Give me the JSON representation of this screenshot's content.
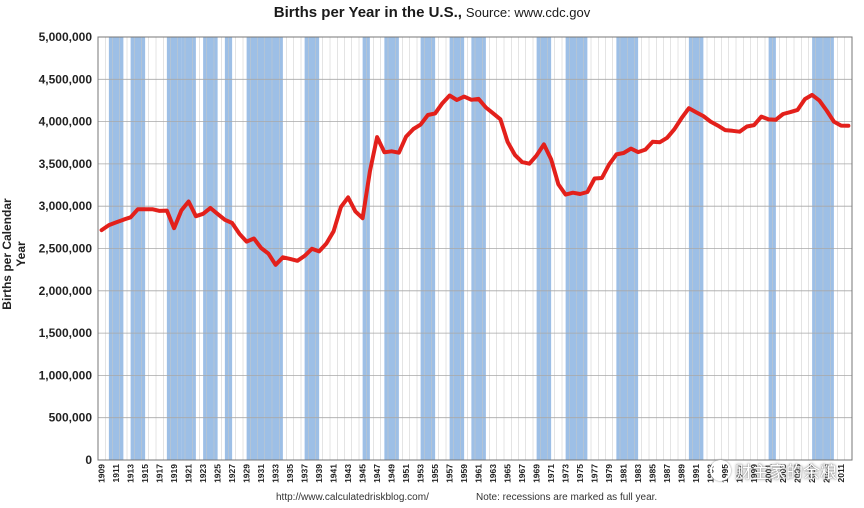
{
  "header": {
    "title": "Births per Year in the U.S.,",
    "source": "Source: www.cdc.gov"
  },
  "footer": {
    "url": "http://www.calculatedriskblog.com/",
    "note": "Note:  recessions are marked as full year."
  },
  "watermark": {
    "text": "财主家的余粮"
  },
  "colors": {
    "line": "#e3201b",
    "recession": "#9dbfe6",
    "grid": "#c8c8c8"
  },
  "chart_data": {
    "type": "line",
    "ylabel": "Births per Calendar Year",
    "xlabel": "",
    "ylim": [
      0,
      5000000
    ],
    "yticks": [
      "0",
      "500,000",
      "1,000,000",
      "1,500,000",
      "2,000,000",
      "2,500,000",
      "3,000,000",
      "3,500,000",
      "4,000,000",
      "4,500,000",
      "5,000,000"
    ],
    "xlim": [
      1909,
      2013
    ],
    "xticks": [
      1909,
      1911,
      1913,
      1915,
      1917,
      1919,
      1921,
      1923,
      1925,
      1927,
      1929,
      1931,
      1933,
      1935,
      1937,
      1939,
      1941,
      1943,
      1945,
      1947,
      1949,
      1951,
      1953,
      1955,
      1957,
      1959,
      1961,
      1963,
      1965,
      1967,
      1969,
      1971,
      1973,
      1975,
      1977,
      1979,
      1981,
      1983,
      1985,
      1987,
      1989,
      1991,
      1993,
      1995,
      1997,
      1999,
      2001,
      2003,
      2005,
      2007,
      2009,
      2011
    ],
    "recessions": [
      [
        1910,
        1911
      ],
      [
        1913,
        1914
      ],
      [
        1918,
        1919
      ],
      [
        1920,
        1921
      ],
      [
        1923,
        1924
      ],
      [
        1926,
        1926
      ],
      [
        1929,
        1933
      ],
      [
        1937,
        1938
      ],
      [
        1945,
        1945
      ],
      [
        1948,
        1949
      ],
      [
        1953,
        1954
      ],
      [
        1957,
        1958
      ],
      [
        1960,
        1961
      ],
      [
        1969,
        1970
      ],
      [
        1973,
        1975
      ],
      [
        1980,
        1982
      ],
      [
        1990,
        1991
      ],
      [
        2001,
        2001
      ],
      [
        2007,
        2009
      ]
    ],
    "series": [
      {
        "x": [
          1909,
          1910,
          1911,
          1912,
          1913,
          1914,
          1915,
          1916,
          1917,
          1918,
          1919,
          1920,
          1921,
          1922,
          1923,
          1924,
          1925,
          1926,
          1927,
          1928,
          1929,
          1930,
          1931,
          1932,
          1933,
          1934,
          1935,
          1936,
          1937,
          1938,
          1939,
          1940,
          1941,
          1942,
          1943,
          1944,
          1945,
          1946,
          1947,
          1948,
          1949,
          1950,
          1951,
          1952,
          1953,
          1954,
          1955,
          1956,
          1957,
          1958,
          1959,
          1960,
          1961,
          1962,
          1963,
          1964,
          1965,
          1966,
          1967,
          1968,
          1969,
          1970,
          1971,
          1972,
          1973,
          1974,
          1975,
          1976,
          1977,
          1978,
          1979,
          1980,
          1981,
          1982,
          1983,
          1984,
          1985,
          1986,
          1987,
          1988,
          1989,
          1990,
          1991,
          1992,
          1993,
          1994,
          1995,
          1996,
          1997,
          1998,
          1999,
          2000,
          2001,
          2002,
          2003,
          2004,
          2005,
          2006,
          2007,
          2008,
          2009,
          2010,
          2011,
          2012
        ],
        "values": [
          2718000,
          2777000,
          2809000,
          2840000,
          2869000,
          2965000,
          2965000,
          2964000,
          2944000,
          2948000,
          2740000,
          2950000,
          3055000,
          2882000,
          2910000,
          2979000,
          2909000,
          2839000,
          2802000,
          2674000,
          2582000,
          2618000,
          2506000,
          2440000,
          2307000,
          2396000,
          2377000,
          2355000,
          2413000,
          2496000,
          2466000,
          2559000,
          2703000,
          2989000,
          3104000,
          2939000,
          2858000,
          3411000,
          3817000,
          3637000,
          3649000,
          3632000,
          3823000,
          3913000,
          3965000,
          4078000,
          4097000,
          4218000,
          4308000,
          4255000,
          4295000,
          4258000,
          4268000,
          4167000,
          4098000,
          4027000,
          3760000,
          3606000,
          3521000,
          3502000,
          3600000,
          3731000,
          3556000,
          3258000,
          3137000,
          3160000,
          3144000,
          3168000,
          3327000,
          3333000,
          3494000,
          3612000,
          3629000,
          3681000,
          3639000,
          3669000,
          3761000,
          3757000,
          3809000,
          3910000,
          4041000,
          4158000,
          4111000,
          4065000,
          4000000,
          3953000,
          3900000,
          3891000,
          3881000,
          3942000,
          3959000,
          4059000,
          4026000,
          4022000,
          4090000,
          4112000,
          4138000,
          4266000,
          4316000,
          4248000,
          4131000,
          4000000,
          3953000,
          3952000
        ]
      }
    ]
  }
}
